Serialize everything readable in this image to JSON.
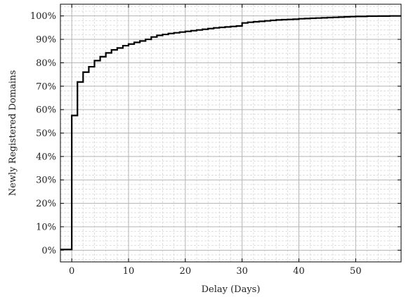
{
  "chart_data": {
    "type": "line",
    "title": "",
    "xlabel": "Delay (Days)",
    "ylabel": "Newly Registered Domains",
    "xlim": [
      -2,
      58
    ],
    "ylim": [
      -5,
      105
    ],
    "x_ticks": [
      0,
      10,
      20,
      30,
      40,
      50
    ],
    "x_tick_labels": [
      "0",
      "10",
      "20",
      "30",
      "40",
      "50"
    ],
    "y_ticks": [
      0,
      10,
      20,
      30,
      40,
      50,
      60,
      70,
      80,
      90,
      100
    ],
    "y_tick_labels": [
      "0%",
      "10%",
      "20%",
      "30%",
      "40%",
      "50%",
      "60%",
      "70%",
      "80%",
      "90%",
      "100%"
    ],
    "grid": true,
    "line_color": "#000000",
    "step": "post",
    "x": [
      -2,
      0,
      1,
      2,
      3,
      4,
      5,
      6,
      7,
      8,
      9,
      10,
      11,
      12,
      13,
      14,
      15,
      16,
      17,
      18,
      19,
      20,
      21,
      22,
      23,
      24,
      25,
      26,
      27,
      28,
      29,
      30,
      31,
      32,
      33,
      34,
      35,
      36,
      37,
      38,
      39,
      40,
      41,
      42,
      43,
      44,
      45,
      46,
      47,
      48,
      49,
      50,
      52,
      54,
      56,
      58
    ],
    "y": [
      0.3,
      57.5,
      71.8,
      76.0,
      78.3,
      80.9,
      82.6,
      84.2,
      85.5,
      86.3,
      87.3,
      88.0,
      88.7,
      89.3,
      90.0,
      91.0,
      91.7,
      92.1,
      92.5,
      92.8,
      93.1,
      93.4,
      93.7,
      94.0,
      94.3,
      94.6,
      94.9,
      95.1,
      95.3,
      95.5,
      95.7,
      97.0,
      97.3,
      97.5,
      97.7,
      97.9,
      98.1,
      98.3,
      98.4,
      98.5,
      98.6,
      98.8,
      98.9,
      99.0,
      99.1,
      99.2,
      99.3,
      99.4,
      99.5,
      99.6,
      99.7,
      99.8,
      99.9,
      99.95,
      100.0,
      100.0
    ]
  }
}
